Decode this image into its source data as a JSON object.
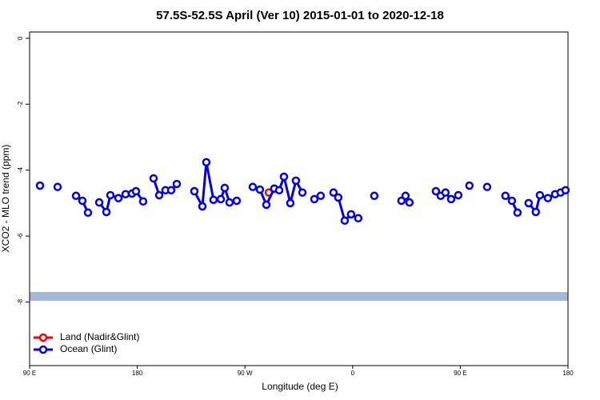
{
  "chart_data": {
    "type": "line",
    "title": "57.5S-52.5S April (Ver 10)   2015-01-01 to 2020-12-18",
    "x_label": "Longitude (deg E)",
    "y_label": "XCO2 - MLO trend (ppm)",
    "xlim": [
      90,
      540
    ],
    "xticks": [
      {
        "value": 90,
        "label": "90 E"
      },
      {
        "value": 180,
        "label": "180"
      },
      {
        "value": 270,
        "label": "90 W"
      },
      {
        "value": 360,
        "label": "0"
      },
      {
        "value": 450,
        "label": "90 E"
      },
      {
        "value": 540,
        "label": "180"
      }
    ],
    "ylim": [
      -9.93,
      0.19
    ],
    "yticks": [
      0,
      -2,
      -4,
      -6,
      -8
    ],
    "legend": "bottom-left",
    "series": [
      {
        "name": "Land (Nadir&Glint)",
        "color": "#ff0000",
        "x": [
          289.9
        ],
        "values": [
          -4.68
        ]
      },
      {
        "name": "Ocean (Glint)",
        "color": "#0000ee",
        "x": [
          98.7,
          null,
          113.4,
          null,
          128.8,
          134.1,
          138.8,
          null,
          148.2,
          154.2,
          157.5,
          164.2,
          170.2,
          175.6,
          178.9,
          184.9,
          null,
          193.6,
          198.3,
          203.6,
          208.3,
          213.0,
          null,
          227.7,
          234.4,
          237.7,
          243.7,
          249.8,
          253.1,
          257.1,
          263.1,
          null,
          276.5,
          282.5,
          287.9,
          294.5,
          298.6,
          302.6,
          307.9,
          312.6,
          318.0,
          null,
          328.0,
          333.3,
          null,
          344.0,
          348.0,
          353.4,
          358.7,
          364.7,
          null,
          378.1,
          null,
          400.8,
          404.2,
          407.5,
          null,
          429.6,
          433.6,
          437.6,
          442.3,
          448.3,
          null,
          457.6,
          null,
          472.4,
          null,
          487.7,
          493.1,
          497.8,
          null,
          507.1,
          513.1,
          516.5,
          523.2,
          529.2,
          533.8,
          537.9
        ],
        "values": [
          -4.47,
          null,
          -4.51,
          null,
          -4.78,
          -4.93,
          -5.29,
          null,
          -4.98,
          -5.27,
          -4.76,
          -4.85,
          -4.73,
          -4.71,
          -4.64,
          -4.95,
          null,
          -4.25,
          -4.76,
          -4.61,
          -4.61,
          -4.42,
          null,
          -4.64,
          -5.1,
          -3.76,
          -4.9,
          -4.88,
          -4.54,
          -4.98,
          -4.93,
          null,
          -4.51,
          -4.59,
          -5.05,
          -4.56,
          -4.61,
          -4.2,
          -5.0,
          -4.32,
          -4.68,
          null,
          -4.88,
          -4.78,
          null,
          -4.68,
          -4.83,
          -5.53,
          -5.34,
          -5.46,
          null,
          -4.78,
          null,
          -4.93,
          -4.78,
          -4.98,
          null,
          -4.64,
          -4.78,
          -4.68,
          -4.88,
          -4.76,
          null,
          -4.47,
          null,
          -4.51,
          null,
          -4.78,
          -4.93,
          -5.29,
          null,
          -5.0,
          -5.27,
          -4.76,
          -4.85,
          -4.73,
          -4.68,
          -4.61
        ]
      }
    ]
  }
}
